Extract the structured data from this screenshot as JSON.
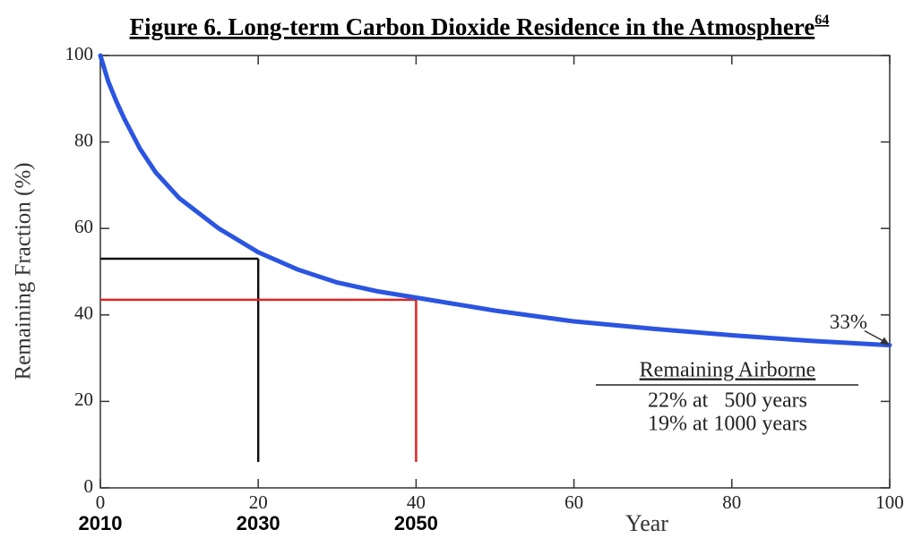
{
  "chart_data": {
    "type": "line",
    "title": "Figure 6. Long-term Carbon Dioxide Residence in the Atmosphere",
    "title_superscript": "64",
    "y_label": "Remaining Fraction (%)",
    "x_label": "Year",
    "x": [
      0,
      1,
      2,
      3,
      5,
      7,
      10,
      15,
      20,
      25,
      30,
      35,
      40,
      50,
      60,
      70,
      80,
      90,
      100
    ],
    "values": [
      100,
      94,
      89.5,
      85.5,
      78.5,
      73,
      67,
      60,
      54.5,
      50.5,
      47.5,
      45.5,
      44,
      41,
      38.5,
      36.8,
      35.3,
      34,
      33
    ],
    "color": "#2b55e0",
    "xlim": [
      0,
      100
    ],
    "xticks": [
      0,
      20,
      40,
      60,
      80,
      100
    ],
    "ylim": [
      0,
      100
    ],
    "yticks": [
      0,
      20,
      40,
      60,
      80,
      100
    ],
    "reference_lines": [
      {
        "x": 20,
        "y": 53,
        "ymin": 6,
        "color": "#111111"
      },
      {
        "x": 40,
        "y": 43.5,
        "ymin": 6,
        "color": "#e02424"
      }
    ],
    "year_labels": [
      {
        "x": 0,
        "label": "2010"
      },
      {
        "x": 20,
        "label": "2030"
      },
      {
        "x": 40,
        "label": "2050"
      }
    ],
    "annotation": {
      "text": "33%",
      "x": 100,
      "y": 33
    },
    "note": {
      "title": "Remaining Airborne",
      "lines": [
        "22% at   500 years",
        "19% at 1000 years"
      ]
    }
  }
}
